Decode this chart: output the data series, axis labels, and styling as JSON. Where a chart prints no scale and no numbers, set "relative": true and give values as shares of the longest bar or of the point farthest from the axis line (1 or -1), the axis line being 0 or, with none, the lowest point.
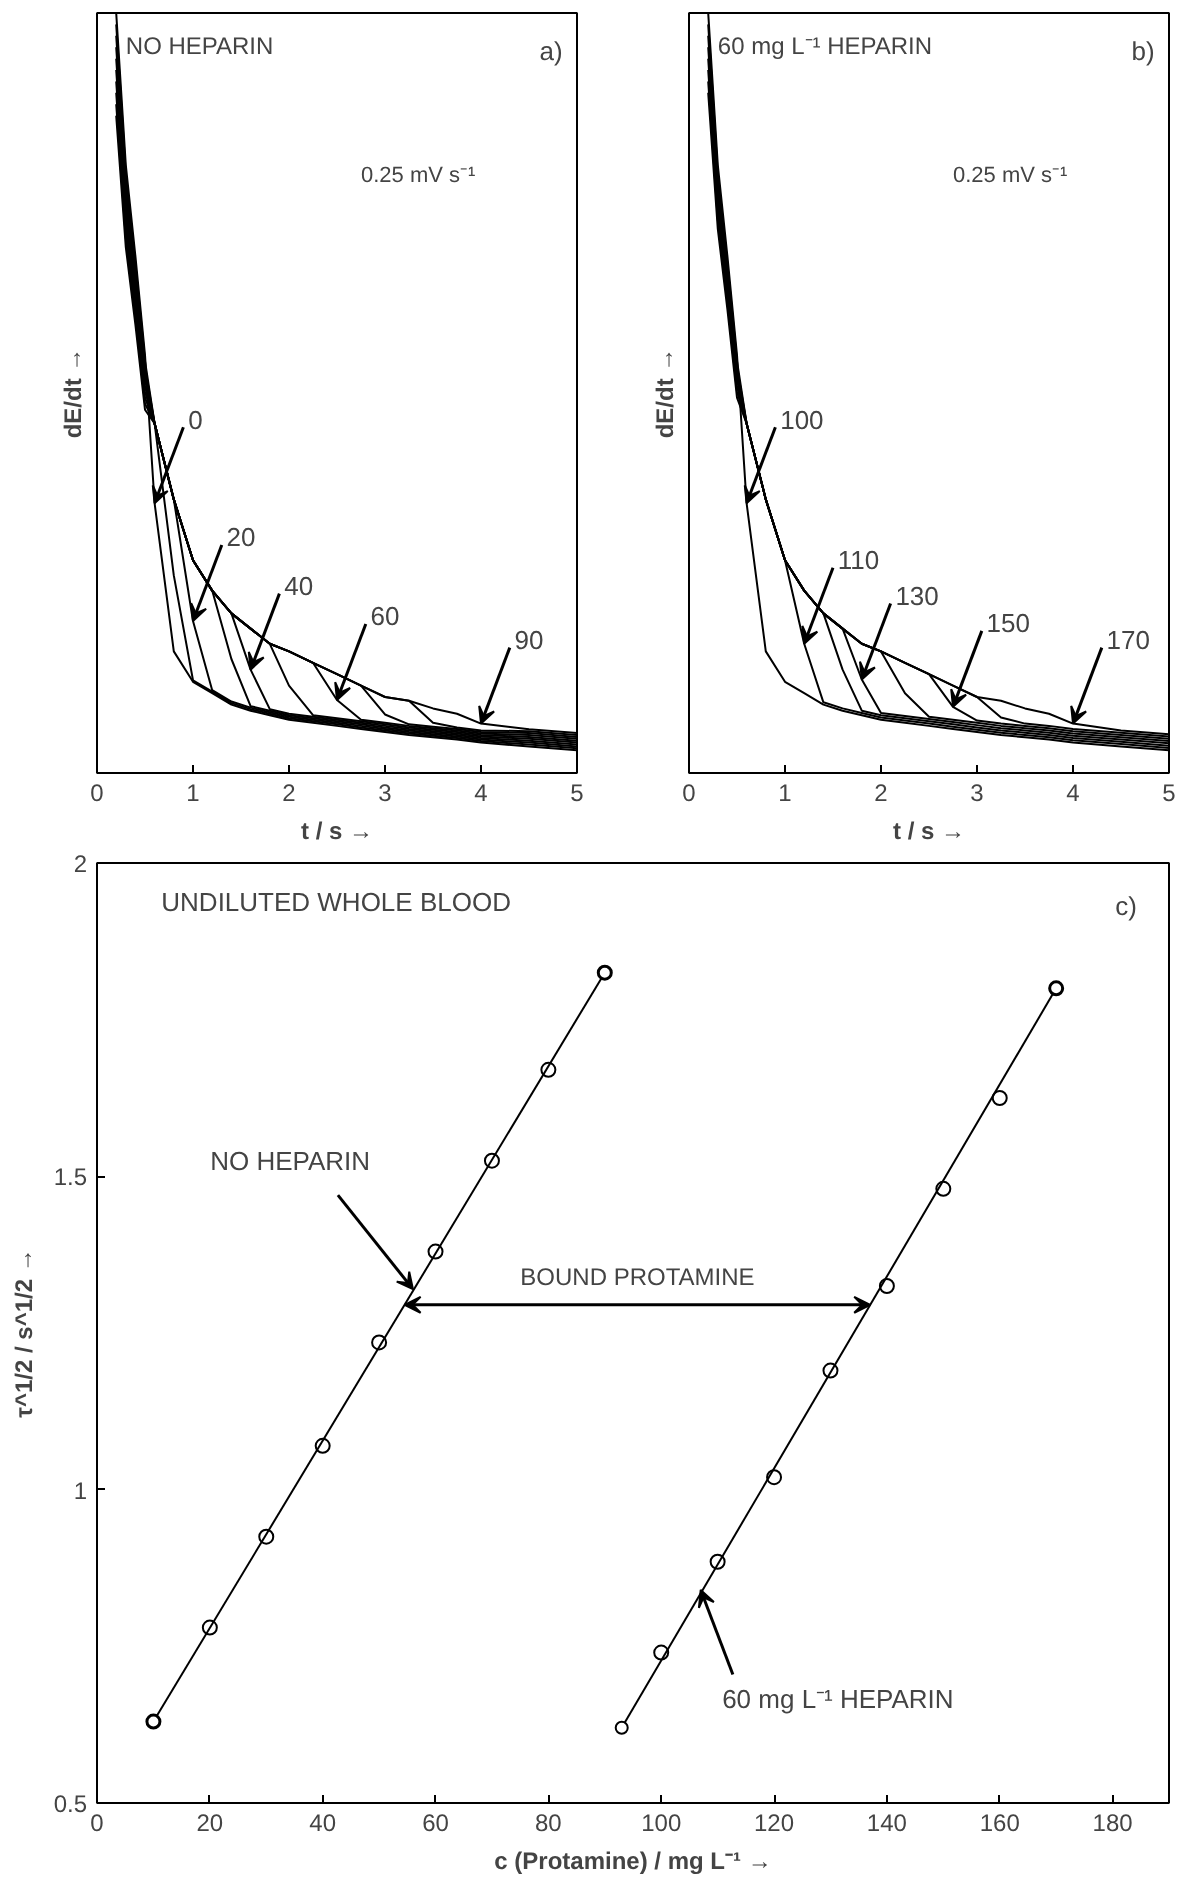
{
  "chart_data": [
    {
      "type": "line",
      "title": "NO HEPARIN",
      "xlabel": "t / s →",
      "ylabel": "dE/dt →",
      "relative": true,
      "color": "#000000",
      "marker": "none",
      "line_style": "solid",
      "grid": false,
      "xlim": [
        0,
        5
      ],
      "xticks": [
        0,
        1,
        2,
        3,
        4,
        5
      ],
      "x": [
        0.2,
        0.3,
        0.4,
        0.5,
        0.6,
        0.8,
        1,
        1.2,
        1.4,
        1.6,
        1.8,
        2,
        2.25,
        2.5,
        2.75,
        3,
        3.25,
        3.5,
        3.75,
        4,
        4.5,
        5
      ],
      "series": [
        {
          "values": [
            1,
            0.8,
            0.68,
            0.55,
            0.355,
            0.16,
            0.12,
            0.105,
            0.09,
            0.082,
            0.076,
            0.07,
            0.066,
            0.062,
            0.058,
            0.054,
            0.05,
            0.047,
            0.044,
            0.04,
            0.035,
            0.03
          ]
        },
        {
          "values": [
            0.985,
            0.788,
            0.67,
            0.542,
            0.46,
            0.26,
            0.122,
            0.107,
            0.092,
            0.084,
            0.078,
            0.072,
            0.068,
            0.064,
            0.06,
            0.056,
            0.052,
            0.049,
            0.046,
            0.042,
            0.0375,
            0.0325
          ]
        },
        {
          "values": [
            0.97,
            0.776,
            0.66,
            0.534,
            0.46,
            0.36,
            0.2,
            0.109,
            0.094,
            0.086,
            0.08,
            0.074,
            0.07,
            0.066,
            0.062,
            0.058,
            0.054,
            0.051,
            0.048,
            0.044,
            0.04,
            0.035
          ]
        },
        {
          "values": [
            0.955,
            0.764,
            0.65,
            0.526,
            0.46,
            0.36,
            0.28,
            0.24,
            0.15,
            0.088,
            0.082,
            0.076,
            0.072,
            0.068,
            0.064,
            0.06,
            0.056,
            0.053,
            0.05,
            0.046,
            0.0425,
            0.0375
          ]
        },
        {
          "values": [
            0.94,
            0.752,
            0.64,
            0.518,
            0.46,
            0.36,
            0.28,
            0.24,
            0.21,
            0.136,
            0.084,
            0.078,
            0.074,
            0.07,
            0.066,
            0.062,
            0.058,
            0.055,
            0.052,
            0.048,
            0.045,
            0.04
          ]
        },
        {
          "values": [
            0.925,
            0.74,
            0.63,
            0.51,
            0.46,
            0.36,
            0.28,
            0.24,
            0.21,
            0.19,
            0.17,
            0.115,
            0.076,
            0.072,
            0.068,
            0.064,
            0.06,
            0.057,
            0.054,
            0.05,
            0.0475,
            0.0425
          ]
        },
        {
          "values": [
            0.91,
            0.728,
            0.62,
            0.502,
            0.46,
            0.36,
            0.28,
            0.24,
            0.21,
            0.19,
            0.17,
            0.16,
            0.145,
            0.096,
            0.07,
            0.066,
            0.062,
            0.059,
            0.056,
            0.052,
            0.05,
            0.045
          ]
        },
        {
          "values": [
            0.895,
            0.716,
            0.61,
            0.494,
            0.46,
            0.36,
            0.28,
            0.24,
            0.21,
            0.19,
            0.17,
            0.16,
            0.145,
            0.13,
            0.115,
            0.077,
            0.064,
            0.061,
            0.058,
            0.054,
            0.0525,
            0.0475
          ]
        },
        {
          "values": [
            0.88,
            0.704,
            0.6,
            0.486,
            0.46,
            0.36,
            0.28,
            0.24,
            0.21,
            0.19,
            0.17,
            0.16,
            0.145,
            0.13,
            0.115,
            0.1,
            0.095,
            0.066,
            0.06,
            0.056,
            0.055,
            0.05
          ]
        },
        {
          "values": [
            0.865,
            0.692,
            0.59,
            0.478,
            0.46,
            0.36,
            0.28,
            0.24,
            0.21,
            0.19,
            0.17,
            0.16,
            0.145,
            0.13,
            0.115,
            0.1,
            0.095,
            0.085,
            0.078,
            0.065,
            0.0575,
            0.0525
          ]
        }
      ],
      "annotations": [
        {
          "text": "0",
          "x": 0.6,
          "y": 0.355
        },
        {
          "text": "20",
          "x": 1,
          "y": 0.2
        },
        {
          "text": "40",
          "x": 1.6,
          "y": 0.136
        },
        {
          "text": "60",
          "x": 2.5,
          "y": 0.096
        },
        {
          "text": "90",
          "x": 4,
          "y": 0.065
        },
        "0.25 mV s⁻¹",
        "a)"
      ]
    },
    {
      "type": "line",
      "title": "60 mg L⁻¹ HEPARIN",
      "xlabel": "t / s →",
      "ylabel": "dE/dt →",
      "relative": true,
      "color": "#000000",
      "marker": "none",
      "line_style": "solid",
      "grid": false,
      "xlim": [
        0,
        5
      ],
      "xticks": [
        0,
        1,
        2,
        3,
        4,
        5
      ],
      "x": [
        0.2,
        0.3,
        0.4,
        0.5,
        0.6,
        0.8,
        1,
        1.2,
        1.4,
        1.6,
        1.8,
        2,
        2.25,
        2.5,
        2.75,
        3,
        3.25,
        3.5,
        3.75,
        4,
        4.5,
        5
      ],
      "series": [
        {
          "values": [
            1,
            0.8,
            0.68,
            0.55,
            0.355,
            0.16,
            0.12,
            0.105,
            0.09,
            0.082,
            0.076,
            0.07,
            0.066,
            0.062,
            0.058,
            0.054,
            0.05,
            0.047,
            0.044,
            0.04,
            0.035,
            0.03
          ]
        },
        {
          "values": [
            0.985,
            0.788,
            0.67,
            0.542,
            0.46,
            0.36,
            0.28,
            0.17,
            0.093,
            0.085,
            0.079,
            0.073,
            0.069,
            0.065,
            0.061,
            0.057,
            0.053,
            0.05,
            0.047,
            0.043,
            0.038,
            0.033
          ]
        },
        {
          "values": [
            0.97,
            0.776,
            0.66,
            0.534,
            0.46,
            0.36,
            0.28,
            0.24,
            0.21,
            0.136,
            0.082,
            0.076,
            0.072,
            0.068,
            0.064,
            0.06,
            0.056,
            0.053,
            0.05,
            0.046,
            0.041,
            0.036
          ]
        },
        {
          "values": [
            0.955,
            0.764,
            0.65,
            0.526,
            0.46,
            0.36,
            0.28,
            0.24,
            0.21,
            0.19,
            0.123,
            0.079,
            0.075,
            0.071,
            0.067,
            0.063,
            0.059,
            0.056,
            0.053,
            0.049,
            0.044,
            0.039
          ]
        },
        {
          "values": [
            0.94,
            0.752,
            0.64,
            0.518,
            0.46,
            0.36,
            0.28,
            0.24,
            0.21,
            0.19,
            0.17,
            0.16,
            0.105,
            0.074,
            0.07,
            0.066,
            0.062,
            0.059,
            0.056,
            0.052,
            0.047,
            0.042
          ]
        },
        {
          "values": [
            0.925,
            0.74,
            0.63,
            0.51,
            0.46,
            0.36,
            0.28,
            0.24,
            0.21,
            0.19,
            0.17,
            0.16,
            0.145,
            0.13,
            0.087,
            0.069,
            0.065,
            0.062,
            0.059,
            0.055,
            0.05,
            0.045
          ]
        },
        {
          "values": [
            0.91,
            0.728,
            0.62,
            0.502,
            0.46,
            0.36,
            0.28,
            0.24,
            0.21,
            0.19,
            0.17,
            0.16,
            0.145,
            0.13,
            0.115,
            0.1,
            0.073,
            0.065,
            0.062,
            0.058,
            0.053,
            0.048
          ]
        },
        {
          "values": [
            0.895,
            0.716,
            0.61,
            0.494,
            0.46,
            0.36,
            0.28,
            0.24,
            0.21,
            0.19,
            0.17,
            0.16,
            0.145,
            0.13,
            0.115,
            0.1,
            0.095,
            0.085,
            0.078,
            0.065,
            0.056,
            0.051
          ]
        }
      ],
      "annotations": [
        {
          "text": "100",
          "x": 0.6,
          "y": 0.355
        },
        {
          "text": "110",
          "x": 1.2,
          "y": 0.17
        },
        {
          "text": "130",
          "x": 1.8,
          "y": 0.123
        },
        {
          "text": "150",
          "x": 2.75,
          "y": 0.087
        },
        {
          "text": "170",
          "x": 4,
          "y": 0.065
        },
        "0.25 mV s⁻¹",
        "b)"
      ]
    },
    {
      "type": "scatter",
      "title": "UNDILUTED WHOLE BLOOD",
      "xlabel": "c (Protamine) / mg L⁻¹ →",
      "ylabel": "τ^1/2 / s^1/2 →",
      "marker": "circle",
      "line_style": "solid",
      "grid": false,
      "xlim": [
        0,
        190
      ],
      "xticks": [
        0,
        20,
        40,
        60,
        80,
        100,
        120,
        140,
        160,
        180
      ],
      "ylim": [
        0.5,
        2
      ],
      "yticks": [
        0.5,
        1,
        1.5,
        2
      ],
      "series": [
        {
          "type": "scatter",
          "color": "#000000",
          "x": [
            10,
            20,
            30,
            40,
            50,
            60,
            70,
            80,
            90
          ],
          "values": [
            0.63,
            0.78,
            0.925,
            1.07,
            1.235,
            1.38,
            1.525,
            1.67,
            1.825
          ]
        },
        {
          "type": "scatter",
          "color": "#000000",
          "x": [
            100,
            110,
            120,
            130,
            140,
            150,
            160,
            170
          ],
          "values": [
            0.74,
            0.885,
            1.02,
            1.19,
            1.325,
            1.48,
            1.625,
            1.8
          ]
        },
        {
          "type": "line",
          "color": "#000000",
          "x": [
            10,
            90
          ],
          "values": [
            0.63,
            1.825
          ]
        },
        {
          "type": "line",
          "color": "#000000",
          "x": [
            93,
            170
          ],
          "values": [
            0.62,
            1.8
          ]
        }
      ],
      "annotations": [
        {
          "text": "NO HEPARIN",
          "x": 56,
          "y": 1.32
        },
        "BOUND PROTAMINE",
        {
          "text": "60 mg L⁻¹ HEPARIN",
          "x": 107,
          "y": 0.84
        },
        "c)"
      ]
    }
  ]
}
